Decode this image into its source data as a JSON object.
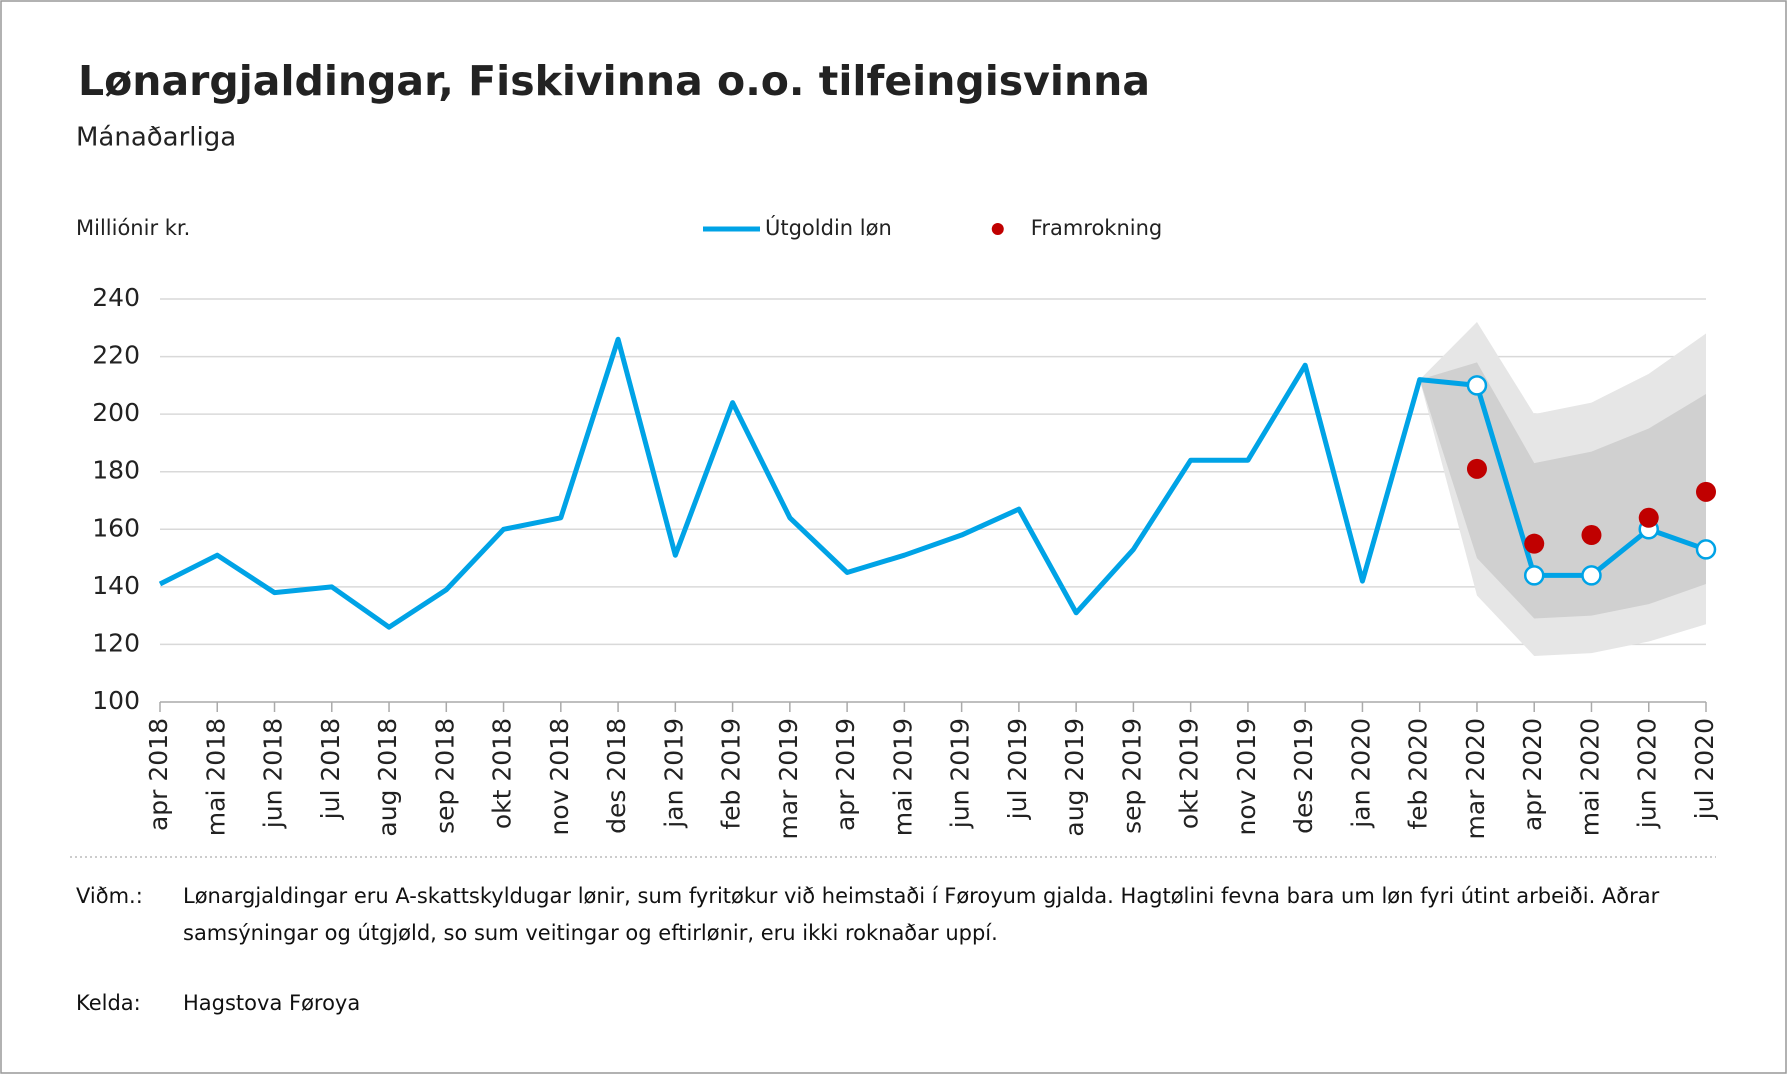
{
  "chart_data": {
    "type": "line",
    "title": "Lønargjaldingar, Fiskivinna o.o. tilfeingisvinna",
    "subtitle": "Mánaðarliga",
    "y_label": "Milliónir kr.",
    "categories": [
      "apr 2018",
      "mai 2018",
      "jun 2018",
      "jul 2018",
      "aug 2018",
      "sep 2018",
      "okt 2018",
      "nov 2018",
      "des 2018",
      "jan 2019",
      "feb 2019",
      "mar 2019",
      "apr 2019",
      "mai 2019",
      "jun 2019",
      "jul 2019",
      "aug 2019",
      "sep 2019",
      "okt 2019",
      "nov 2019",
      "des 2019",
      "jan 2020",
      "feb 2020",
      "mar 2020",
      "apr 2020",
      "mai 2020",
      "jun 2020",
      "jul 2020"
    ],
    "series": [
      {
        "name": "Útgoldin løn",
        "color": "#00a3e6",
        "values": [
          141,
          151,
          138,
          140,
          126,
          139,
          160,
          164,
          226,
          151,
          204,
          164,
          145,
          151,
          158,
          167,
          131,
          153,
          184,
          184,
          217,
          142,
          212,
          210,
          144,
          144,
          160,
          153
        ],
        "markers": [
          false,
          false,
          false,
          false,
          false,
          false,
          false,
          false,
          false,
          false,
          false,
          false,
          false,
          false,
          false,
          false,
          false,
          false,
          false,
          false,
          false,
          false,
          false,
          true,
          true,
          true,
          true,
          true
        ]
      },
      {
        "name": "Framrokning",
        "color": "#c00000",
        "type": "scatter",
        "values": [
          null,
          null,
          null,
          null,
          null,
          null,
          null,
          null,
          null,
          null,
          null,
          null,
          null,
          null,
          null,
          null,
          null,
          null,
          null,
          null,
          null,
          null,
          null,
          181,
          155,
          158,
          164,
          173
        ]
      }
    ],
    "bands": [
      {
        "color": "#e6e6e6",
        "upper": [
          null,
          null,
          null,
          null,
          null,
          null,
          null,
          null,
          null,
          null,
          null,
          null,
          null,
          null,
          null,
          null,
          null,
          null,
          null,
          null,
          null,
          null,
          212,
          232,
          200,
          204,
          214,
          228
        ],
        "lower": [
          null,
          null,
          null,
          null,
          null,
          null,
          null,
          null,
          null,
          null,
          null,
          null,
          null,
          null,
          null,
          null,
          null,
          null,
          null,
          null,
          null,
          null,
          212,
          137,
          116,
          117,
          121,
          127
        ]
      },
      {
        "color": "#d0d0d0",
        "upper": [
          null,
          null,
          null,
          null,
          null,
          null,
          null,
          null,
          null,
          null,
          null,
          null,
          null,
          null,
          null,
          null,
          null,
          null,
          null,
          null,
          null,
          null,
          212,
          218,
          183,
          187,
          195,
          207
        ],
        "lower": [
          null,
          null,
          null,
          null,
          null,
          null,
          null,
          null,
          null,
          null,
          null,
          null,
          null,
          null,
          null,
          null,
          null,
          null,
          null,
          null,
          null,
          null,
          212,
          150,
          129,
          130,
          134,
          141
        ]
      }
    ],
    "ylim": [
      100,
      240
    ],
    "yticks": [
      100,
      120,
      140,
      160,
      180,
      200,
      220,
      240
    ],
    "grid": true
  },
  "notes": {
    "label": "Viðm.:",
    "text": "Lønargjaldingar eru A-skattskyldugar lønir, sum fyritøkur við heimstaði í Føroyum gjalda. Hagtølini fevna bara um løn fyri útint arbeiði. Aðrar samsýningar og útgjøld, so sum veitingar og eftirlønir, eru ikki roknaðar uppí."
  },
  "source": {
    "label": "Kelda:",
    "text": "Hagstova Føroya"
  }
}
